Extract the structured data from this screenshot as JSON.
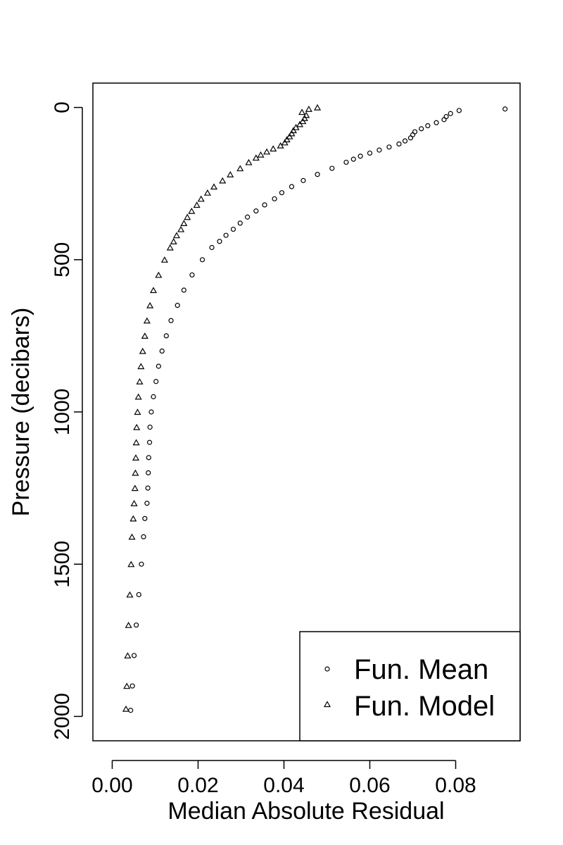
{
  "chart_data": {
    "type": "scatter",
    "xlabel": "Median Absolute Residual",
    "ylabel": "Pressure (decibars)",
    "xlim": [
      -0.0045,
      0.095
    ],
    "ylim": [
      2080,
      -80
    ],
    "y_reversed": true,
    "grid": false,
    "legend_position": "bottom-right",
    "x_ticks": [
      0.0,
      0.02,
      0.04,
      0.06,
      0.08
    ],
    "x_tick_labels": [
      "0.00",
      "0.02",
      "0.04",
      "0.06",
      "0.08"
    ],
    "y_ticks": [
      0,
      500,
      1000,
      1500,
      2000
    ],
    "y_tick_labels": [
      "0",
      "500",
      "1000",
      "1500",
      "2000"
    ],
    "series": [
      {
        "name": "Fun. Mean",
        "marker": "circle",
        "points": [
          [
            0.0915,
            5
          ],
          [
            0.0808,
            10
          ],
          [
            0.0788,
            20
          ],
          [
            0.0778,
            30
          ],
          [
            0.0773,
            40
          ],
          [
            0.0755,
            50
          ],
          [
            0.0735,
            60
          ],
          [
            0.072,
            70
          ],
          [
            0.0705,
            80
          ],
          [
            0.07,
            90
          ],
          [
            0.0695,
            100
          ],
          [
            0.0682,
            110
          ],
          [
            0.0668,
            120
          ],
          [
            0.0645,
            130
          ],
          [
            0.0622,
            140
          ],
          [
            0.06,
            150
          ],
          [
            0.0578,
            160
          ],
          [
            0.0562,
            170
          ],
          [
            0.0545,
            180
          ],
          [
            0.0512,
            200
          ],
          [
            0.0478,
            220
          ],
          [
            0.0445,
            240
          ],
          [
            0.0418,
            260
          ],
          [
            0.0395,
            280
          ],
          [
            0.0378,
            300
          ],
          [
            0.0355,
            320
          ],
          [
            0.0335,
            340
          ],
          [
            0.0315,
            360
          ],
          [
            0.0298,
            380
          ],
          [
            0.0282,
            400
          ],
          [
            0.0265,
            420
          ],
          [
            0.025,
            440
          ],
          [
            0.0232,
            460
          ],
          [
            0.021,
            500
          ],
          [
            0.0186,
            550
          ],
          [
            0.0167,
            600
          ],
          [
            0.0152,
            650
          ],
          [
            0.0137,
            700
          ],
          [
            0.0126,
            750
          ],
          [
            0.0116,
            800
          ],
          [
            0.0108,
            850
          ],
          [
            0.0102,
            900
          ],
          [
            0.0096,
            950
          ],
          [
            0.0091,
            1000
          ],
          [
            0.0088,
            1050
          ],
          [
            0.0087,
            1100
          ],
          [
            0.0085,
            1150
          ],
          [
            0.0084,
            1200
          ],
          [
            0.0083,
            1250
          ],
          [
            0.0081,
            1300
          ],
          [
            0.0076,
            1350
          ],
          [
            0.0073,
            1410
          ],
          [
            0.0068,
            1500
          ],
          [
            0.0062,
            1600
          ],
          [
            0.0056,
            1700
          ],
          [
            0.0051,
            1800
          ],
          [
            0.0047,
            1900
          ],
          [
            0.0043,
            1980
          ]
        ]
      },
      {
        "name": "Fun. Model",
        "marker": "triangle",
        "points": [
          [
            0.0478,
            0
          ],
          [
            0.0458,
            5
          ],
          [
            0.0442,
            15
          ],
          [
            0.0452,
            25
          ],
          [
            0.0448,
            35
          ],
          [
            0.0444,
            45
          ],
          [
            0.0437,
            55
          ],
          [
            0.0428,
            65
          ],
          [
            0.0422,
            75
          ],
          [
            0.0418,
            85
          ],
          [
            0.0413,
            95
          ],
          [
            0.0407,
            105
          ],
          [
            0.0402,
            115
          ],
          [
            0.0392,
            125
          ],
          [
            0.0375,
            135
          ],
          [
            0.036,
            145
          ],
          [
            0.0346,
            155
          ],
          [
            0.0335,
            165
          ],
          [
            0.0318,
            180
          ],
          [
            0.0298,
            200
          ],
          [
            0.0275,
            220
          ],
          [
            0.0257,
            240
          ],
          [
            0.0237,
            260
          ],
          [
            0.0222,
            280
          ],
          [
            0.0207,
            300
          ],
          [
            0.0197,
            320
          ],
          [
            0.0185,
            340
          ],
          [
            0.0175,
            360
          ],
          [
            0.0167,
            380
          ],
          [
            0.016,
            400
          ],
          [
            0.015,
            420
          ],
          [
            0.0143,
            440
          ],
          [
            0.0135,
            460
          ],
          [
            0.0122,
            500
          ],
          [
            0.0108,
            550
          ],
          [
            0.0096,
            600
          ],
          [
            0.0088,
            650
          ],
          [
            0.0081,
            700
          ],
          [
            0.0076,
            750
          ],
          [
            0.0071,
            800
          ],
          [
            0.0067,
            850
          ],
          [
            0.0064,
            900
          ],
          [
            0.0061,
            950
          ],
          [
            0.0059,
            1000
          ],
          [
            0.0057,
            1050
          ],
          [
            0.0056,
            1100
          ],
          [
            0.0055,
            1150
          ],
          [
            0.0054,
            1200
          ],
          [
            0.0053,
            1250
          ],
          [
            0.0051,
            1300
          ],
          [
            0.0049,
            1350
          ],
          [
            0.0046,
            1410
          ],
          [
            0.0044,
            1500
          ],
          [
            0.0041,
            1600
          ],
          [
            0.0038,
            1700
          ],
          [
            0.0036,
            1800
          ],
          [
            0.0034,
            1900
          ],
          [
            0.0032,
            1975
          ]
        ]
      }
    ]
  }
}
